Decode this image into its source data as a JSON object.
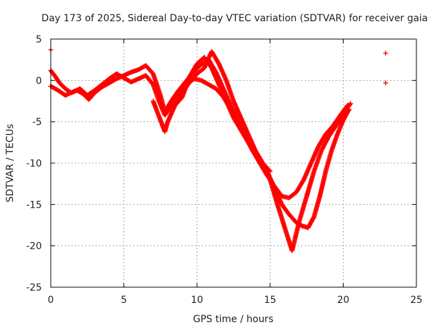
{
  "chart_data": {
    "type": "scatter",
    "title": "Day 173 of 2025, Sidereal Day-to-day VTEC variation (SDTVAR) for receiver gaia",
    "xlabel": "GPS time / hours",
    "ylabel": "SDTVAR / TECUs",
    "xlim": [
      0,
      25
    ],
    "ylim": [
      -25,
      5
    ],
    "x_ticks": [
      0,
      5,
      10,
      15,
      20,
      25
    ],
    "y_ticks": [
      -25,
      -20,
      -15,
      -10,
      -5,
      0,
      5
    ],
    "x_tick_labels": [
      "0",
      "5",
      "10",
      "15",
      "20",
      "25"
    ],
    "y_tick_labels": [
      "-25",
      "-20",
      "-15",
      "-10",
      "-5",
      "0",
      "5"
    ],
    "grid": true,
    "marker": "+",
    "color": "#ff0000",
    "series": [
      {
        "name": "track-a",
        "x": [
          0.0,
          0.3,
          0.6,
          1.0,
          1.4,
          1.8,
          2.2,
          2.6,
          3.0,
          3.5,
          4.0,
          4.5,
          5.0,
          5.5,
          6.0,
          6.5,
          7.0,
          7.5,
          7.8,
          8.2,
          8.7,
          9.2,
          9.7,
          10.2,
          10.8,
          11.3,
          11.8,
          12.3,
          12.8,
          13.3,
          13.8,
          14.3,
          14.8,
          15.3,
          15.8,
          16.3,
          16.8,
          17.2,
          17.6,
          18.0,
          18.4,
          18.8,
          19.2,
          19.6,
          20.0,
          20.4
        ],
        "y": [
          1.2,
          0.5,
          -0.3,
          -1.0,
          -1.5,
          -1.2,
          -1.6,
          -2.3,
          -1.5,
          -0.8,
          -0.3,
          0.2,
          0.6,
          1.0,
          1.3,
          1.8,
          0.8,
          -1.8,
          -3.8,
          -2.6,
          -1.3,
          -0.2,
          0.9,
          1.8,
          2.5,
          1.0,
          -1.0,
          -3.0,
          -4.8,
          -6.5,
          -8.0,
          -9.5,
          -11.0,
          -13.0,
          -15.0,
          -16.2,
          -17.2,
          -17.6,
          -17.8,
          -16.5,
          -14.0,
          -11.0,
          -8.5,
          -6.5,
          -4.8,
          -3.5
        ]
      },
      {
        "name": "track-b",
        "x": [
          0.0,
          0.5,
          1.0,
          1.5,
          2.0,
          2.5,
          3.0,
          3.5,
          4.0,
          4.5,
          5.0,
          5.5,
          6.0,
          6.5,
          7.0,
          7.4,
          7.8,
          8.3,
          8.8,
          9.3,
          9.8,
          10.3,
          10.8,
          11.3,
          11.8,
          12.3,
          12.8,
          13.3,
          13.8,
          14.3,
          14.8,
          15.3,
          15.8,
          16.3,
          16.8,
          17.3,
          17.8,
          18.3,
          18.8,
          19.3,
          19.8,
          20.3
        ],
        "y": [
          -0.7,
          -1.2,
          -1.8,
          -1.4,
          -1.0,
          -1.8,
          -1.2,
          -0.5,
          0.2,
          0.8,
          0.3,
          -0.2,
          0.2,
          0.6,
          -0.5,
          -2.5,
          -4.2,
          -3.0,
          -1.8,
          -0.5,
          0.2,
          0.0,
          -0.5,
          -1.0,
          -2.0,
          -3.5,
          -5.0,
          -6.8,
          -8.5,
          -10.0,
          -11.5,
          -12.8,
          -14.0,
          -14.2,
          -13.5,
          -12.0,
          -10.0,
          -8.0,
          -6.5,
          -5.5,
          -4.2,
          -3.0
        ]
      },
      {
        "name": "track-c",
        "x": [
          7.0,
          7.5,
          7.8,
          8.0,
          8.5,
          9.0,
          9.5,
          10.0,
          10.5,
          11.0,
          11.5,
          12.0,
          12.5,
          13.0,
          13.5,
          14.0,
          14.5,
          15.0
        ],
        "y": [
          -2.5,
          -4.8,
          -6.2,
          -5.0,
          -3.0,
          -1.5,
          -0.2,
          0.8,
          1.5,
          3.5,
          2.0,
          0.0,
          -2.5,
          -4.5,
          -6.5,
          -8.5,
          -10.0,
          -11.0
        ]
      },
      {
        "name": "track-d",
        "x": [
          8.5,
          9.0,
          9.5,
          10.0,
          10.5,
          11.0,
          11.5,
          12.0,
          12.5,
          13.0,
          13.5,
          14.0,
          14.5,
          15.0,
          15.5,
          16.0,
          16.5,
          17.0,
          17.5,
          18.0,
          18.5,
          19.0,
          19.5,
          20.0,
          20.5
        ],
        "y": [
          -3.0,
          -2.0,
          0.5,
          2.0,
          2.8,
          1.5,
          -0.5,
          -2.5,
          -4.5,
          -6.0,
          -7.5,
          -9.0,
          -10.5,
          -12.0,
          -15.0,
          -17.8,
          -20.6,
          -17.0,
          -14.0,
          -11.0,
          -8.5,
          -6.8,
          -5.5,
          -4.0,
          -2.8
        ]
      },
      {
        "name": "outliers",
        "x": [
          0.0,
          22.9,
          22.9
        ],
        "y": [
          3.7,
          3.3,
          -0.3
        ]
      }
    ]
  }
}
